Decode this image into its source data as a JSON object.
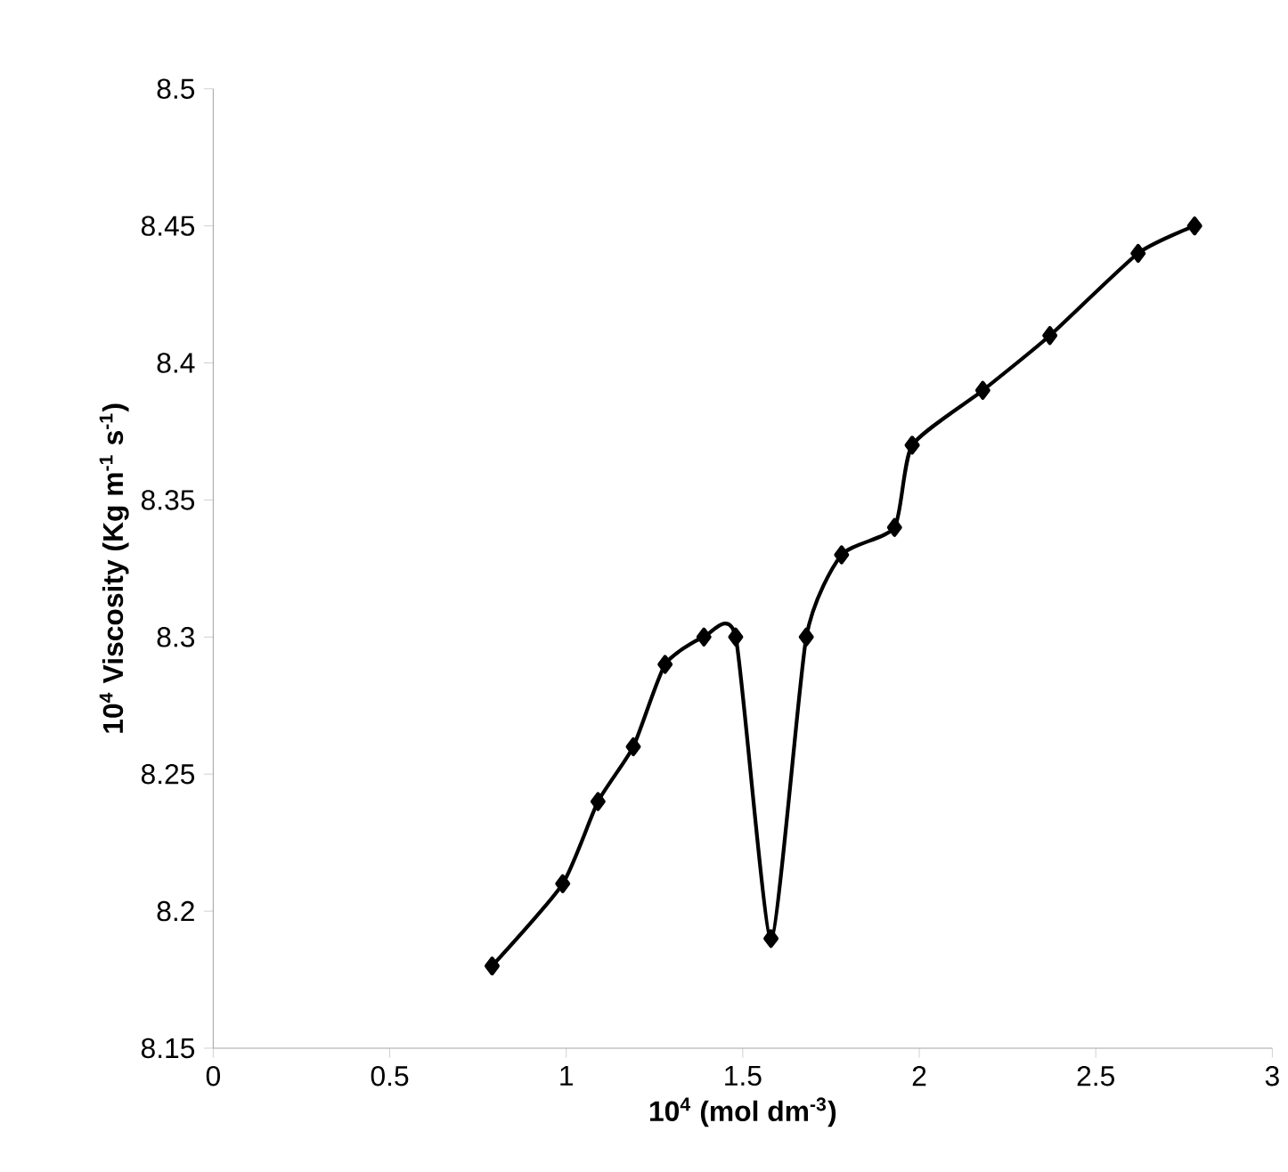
{
  "chart_data": {
    "type": "line",
    "xlabel": "10$^{4}$ (mol dm$^{-3}$)",
    "ylabel": "10$^{4}$ Viscosity (Kg m$^{-1}$ s$^{-1}$)",
    "x": [
      0.79,
      0.99,
      1.09,
      1.19,
      1.28,
      1.39,
      1.48,
      1.58,
      1.68,
      1.78,
      1.93,
      1.98,
      2.18,
      2.37,
      2.62,
      2.78
    ],
    "series": [
      {
        "color": "#000000",
        "values": [
          8.18,
          8.21,
          8.24,
          8.26,
          8.29,
          8.3,
          8.3,
          8.19,
          8.3,
          8.33,
          8.34,
          8.37,
          8.39,
          8.41,
          8.44,
          8.45
        ]
      }
    ],
    "xlim": [
      0,
      3
    ],
    "xticks": [
      0,
      0.5,
      1,
      1.5,
      2,
      2.5,
      3
    ],
    "ylim": [
      8.15,
      8.5
    ],
    "yticks": [
      8.15,
      8.2,
      8.25,
      8.3,
      8.35,
      8.4,
      8.45,
      8.5
    ],
    "marker": "diamond",
    "line_style": "solid"
  }
}
